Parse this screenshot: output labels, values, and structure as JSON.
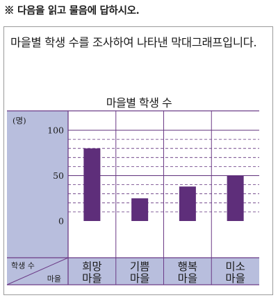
{
  "instruction": "※ 다음을 읽고 물음에 답하시오.",
  "question": "마을별 학생 수를 조사하여 나타낸 막대그래프입니다.",
  "colors": {
    "panel": "#b8bedd",
    "bar": "#5e2e7a",
    "grid": "#5e2e7a",
    "frame": "#6b3a86"
  },
  "chart_data": {
    "type": "bar",
    "title": "마을별 학생 수",
    "unit": "(명)",
    "ylim": [
      0,
      100
    ],
    "yticks": [
      0,
      50,
      100
    ],
    "ytick_labels": [
      "0",
      "50",
      "100"
    ],
    "minor_step": 10,
    "row_header": "학생 수",
    "col_header": "마을",
    "categories": [
      "희망\n마을",
      "기쁨\n마을",
      "행복\n마을",
      "미소\n마을"
    ],
    "values": [
      80,
      25,
      38,
      50
    ]
  }
}
